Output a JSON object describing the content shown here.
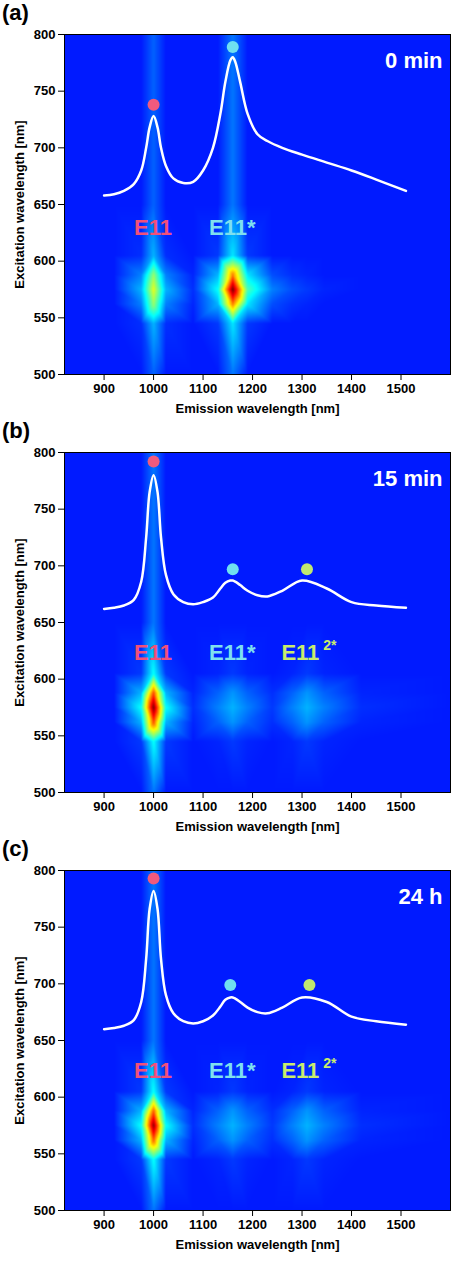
{
  "chart_data": [
    {
      "type": "heatmap",
      "panel": "(a)",
      "title": "0 min",
      "x_label": "Emission wavelength [nm]",
      "y_label": "Excitation wavelength [nm]",
      "xlim": [
        820,
        1600
      ],
      "ylim": [
        500,
        800
      ],
      "xticks": [
        900,
        1000,
        1100,
        1200,
        1300,
        1400,
        1500
      ],
      "yticks": [
        500,
        550,
        600,
        650,
        700,
        750,
        800
      ],
      "map": {
        "zlim": [
          0,
          100
        ],
        "x": [
          820,
          920,
          975,
          1000,
          1025,
          1080,
          1130,
          1160,
          1190,
          1240,
          1280,
          1310,
          1345,
          1420,
          1600
        ],
        "y": [
          500,
          545,
          562,
          575,
          588,
          605,
          650,
          720,
          800
        ],
        "values": [
          [
            15,
            15,
            15,
            22,
            15,
            15,
            15,
            24,
            15,
            15,
            15,
            15,
            15,
            15,
            15
          ],
          [
            15,
            15,
            17,
            30,
            17,
            15,
            18,
            35,
            18,
            15,
            15,
            15,
            15,
            15,
            15
          ],
          [
            15,
            15,
            25,
            52,
            25,
            16,
            30,
            75,
            35,
            20,
            17,
            16,
            15,
            15,
            15
          ],
          [
            15,
            15,
            30,
            60,
            30,
            17,
            38,
            100,
            45,
            25,
            20,
            18,
            16,
            15,
            15
          ],
          [
            15,
            15,
            25,
            52,
            25,
            16,
            30,
            75,
            35,
            20,
            17,
            16,
            15,
            15,
            15
          ],
          [
            15,
            15,
            17,
            30,
            17,
            15,
            18,
            35,
            18,
            15,
            15,
            15,
            15,
            15,
            15
          ],
          [
            15,
            15,
            15,
            22,
            15,
            15,
            15,
            24,
            15,
            15,
            15,
            15,
            15,
            15,
            15
          ],
          [
            15,
            15,
            15,
            22,
            15,
            15,
            15,
            24,
            15,
            15,
            15,
            15,
            15,
            15,
            15
          ],
          [
            15,
            15,
            15,
            22,
            15,
            15,
            15,
            24,
            15,
            15,
            15,
            15,
            15,
            15,
            15
          ]
        ]
      },
      "spectrum": {
        "color": "#ffffff",
        "x": [
          900,
          920,
          940,
          960,
          975,
          985,
          992,
          1000,
          1008,
          1015,
          1025,
          1040,
          1060,
          1080,
          1100,
          1120,
          1135,
          1145,
          1155,
          1160,
          1165,
          1175,
          1190,
          1210,
          1230,
          1260,
          1300,
          1350,
          1400,
          1450,
          1510
        ],
        "values": [
          658,
          659,
          662,
          668,
          680,
          700,
          718,
          728,
          718,
          700,
          684,
          673,
          669,
          670,
          680,
          700,
          730,
          758,
          777,
          780,
          776,
          758,
          730,
          712,
          706,
          700,
          694,
          687,
          680,
          672,
          662
        ]
      },
      "peaks": [
        {
          "x": 1000,
          "y": 738,
          "color": "#f05a7e"
        },
        {
          "x": 1160,
          "y": 789,
          "color": "#6fe0f0"
        }
      ],
      "annotations": [
        {
          "text": "E11",
          "x": 1000,
          "y": 628,
          "color": "#f0507a"
        },
        {
          "text": "E11*",
          "x": 1160,
          "y": 628,
          "color": "#7fe0ee"
        }
      ]
    },
    {
      "type": "heatmap",
      "panel": "(b)",
      "title": "15 min",
      "x_label": "Emission wavelength [nm]",
      "y_label": "Excitation wavelength [nm]",
      "xlim": [
        820,
        1600
      ],
      "ylim": [
        500,
        800
      ],
      "xticks": [
        900,
        1000,
        1100,
        1200,
        1300,
        1400,
        1500
      ],
      "yticks": [
        500,
        550,
        600,
        650,
        700,
        750,
        800
      ],
      "map": {
        "zlim": [
          0,
          100
        ],
        "x": [
          820,
          920,
          975,
          1000,
          1025,
          1080,
          1130,
          1160,
          1190,
          1240,
          1280,
          1310,
          1345,
          1420,
          1600
        ],
        "y": [
          500,
          545,
          562,
          575,
          588,
          605,
          650,
          720,
          800
        ],
        "values": [
          [
            15,
            15,
            15,
            24,
            15,
            15,
            15,
            15,
            15,
            15,
            15,
            15,
            15,
            15,
            15
          ],
          [
            15,
            15,
            18,
            38,
            18,
            15,
            16,
            18,
            16,
            15,
            16,
            18,
            16,
            15,
            15
          ],
          [
            15,
            15,
            30,
            80,
            30,
            16,
            22,
            27,
            22,
            17,
            22,
            27,
            22,
            16,
            15
          ],
          [
            15,
            15,
            38,
            100,
            38,
            17,
            25,
            30,
            25,
            18,
            25,
            30,
            25,
            17,
            15
          ],
          [
            15,
            15,
            30,
            80,
            30,
            16,
            22,
            27,
            22,
            17,
            22,
            27,
            22,
            16,
            15
          ],
          [
            15,
            15,
            18,
            38,
            18,
            15,
            16,
            18,
            16,
            15,
            16,
            18,
            16,
            15,
            15
          ],
          [
            15,
            15,
            15,
            24,
            15,
            15,
            15,
            15,
            15,
            15,
            15,
            15,
            15,
            15,
            15
          ],
          [
            15,
            15,
            15,
            24,
            15,
            15,
            15,
            15,
            15,
            15,
            15,
            15,
            15,
            15,
            15
          ],
          [
            15,
            15,
            15,
            24,
            15,
            15,
            15,
            15,
            15,
            15,
            15,
            15,
            15,
            15,
            15
          ]
        ]
      },
      "spectrum": {
        "color": "#ffffff",
        "x": [
          900,
          920,
          940,
          960,
          975,
          985,
          992,
          1000,
          1008,
          1015,
          1025,
          1040,
          1060,
          1080,
          1100,
          1120,
          1135,
          1145,
          1155,
          1160,
          1165,
          1175,
          1190,
          1210,
          1230,
          1260,
          1300,
          1350,
          1400,
          1450,
          1510
        ],
        "values": [
          662,
          663,
          665,
          670,
          686,
          725,
          765,
          780,
          765,
          725,
          692,
          675,
          668,
          666,
          668,
          672,
          680,
          685,
          687,
          687,
          686,
          683,
          678,
          674,
          673,
          678,
          687,
          680,
          668,
          665,
          663
        ]
      },
      "peaks": [
        {
          "x": 1000,
          "y": 792,
          "color": "#f05a7e"
        },
        {
          "x": 1160,
          "y": 697,
          "color": "#6fe0f0"
        },
        {
          "x": 1310,
          "y": 697,
          "color": "#c0e870"
        }
      ],
      "annotations": [
        {
          "text": "E11",
          "x": 1000,
          "y": 622,
          "color": "#f0507a"
        },
        {
          "text": "E11*",
          "x": 1160,
          "y": 622,
          "color": "#7fe0ee"
        },
        {
          "text": "E11",
          "sup": "2*",
          "x": 1315,
          "y": 622,
          "color": "#c8ec6c"
        }
      ]
    },
    {
      "type": "heatmap",
      "panel": "(c)",
      "title": "24 h",
      "x_label": "Emission wavelength [nm]",
      "y_label": "Excitation wavelength [nm]",
      "xlim": [
        820,
        1600
      ],
      "ylim": [
        500,
        800
      ],
      "xticks": [
        900,
        1000,
        1100,
        1200,
        1300,
        1400,
        1500
      ],
      "yticks": [
        500,
        550,
        600,
        650,
        700,
        750,
        800
      ],
      "map": {
        "zlim": [
          0,
          100
        ],
        "x": [
          820,
          920,
          975,
          1000,
          1025,
          1080,
          1130,
          1160,
          1190,
          1240,
          1280,
          1310,
          1345,
          1420,
          1600
        ],
        "y": [
          500,
          545,
          562,
          575,
          588,
          605,
          650,
          720,
          800
        ],
        "values": [
          [
            15,
            15,
            15,
            24,
            15,
            15,
            15,
            15,
            15,
            15,
            15,
            15,
            15,
            15,
            15
          ],
          [
            15,
            15,
            18,
            38,
            18,
            15,
            16,
            18,
            16,
            15,
            16,
            18,
            16,
            15,
            15
          ],
          [
            15,
            15,
            30,
            78,
            30,
            16,
            22,
            27,
            22,
            17,
            22,
            27,
            22,
            16,
            15
          ],
          [
            15,
            15,
            38,
            98,
            38,
            17,
            25,
            30,
            25,
            18,
            25,
            30,
            25,
            17,
            15
          ],
          [
            15,
            15,
            30,
            78,
            30,
            16,
            22,
            27,
            22,
            17,
            22,
            27,
            22,
            16,
            15
          ],
          [
            15,
            15,
            18,
            38,
            18,
            15,
            16,
            18,
            16,
            15,
            16,
            18,
            16,
            15,
            15
          ],
          [
            15,
            15,
            15,
            24,
            15,
            15,
            15,
            15,
            15,
            15,
            15,
            15,
            15,
            15,
            15
          ],
          [
            15,
            15,
            15,
            24,
            15,
            15,
            15,
            15,
            15,
            15,
            15,
            15,
            15,
            15,
            15
          ],
          [
            15,
            15,
            15,
            24,
            15,
            15,
            15,
            15,
            15,
            15,
            15,
            15,
            15,
            15,
            15
          ]
        ]
      },
      "spectrum": {
        "color": "#ffffff",
        "x": [
          900,
          920,
          940,
          960,
          975,
          985,
          992,
          1000,
          1008,
          1015,
          1025,
          1040,
          1060,
          1080,
          1100,
          1120,
          1135,
          1145,
          1155,
          1160,
          1165,
          1175,
          1190,
          1210,
          1230,
          1260,
          1300,
          1350,
          1400,
          1450,
          1510
        ],
        "values": [
          660,
          661,
          663,
          668,
          684,
          722,
          766,
          782,
          766,
          722,
          690,
          674,
          667,
          665,
          667,
          672,
          680,
          686,
          688,
          688,
          687,
          684,
          679,
          675,
          674,
          679,
          688,
          684,
          671,
          667,
          664
        ]
      },
      "peaks": [
        {
          "x": 1000,
          "y": 793,
          "color": "#f05a7e"
        },
        {
          "x": 1155,
          "y": 699,
          "color": "#6fe0f0"
        },
        {
          "x": 1315,
          "y": 699,
          "color": "#c0e870"
        }
      ],
      "annotations": [
        {
          "text": "E11",
          "x": 1000,
          "y": 622,
          "color": "#f0507a"
        },
        {
          "text": "E11*",
          "x": 1160,
          "y": 622,
          "color": "#7fe0ee"
        },
        {
          "text": "E11",
          "sup": "2*",
          "x": 1315,
          "y": 622,
          "color": "#c8ec6c"
        }
      ]
    }
  ]
}
